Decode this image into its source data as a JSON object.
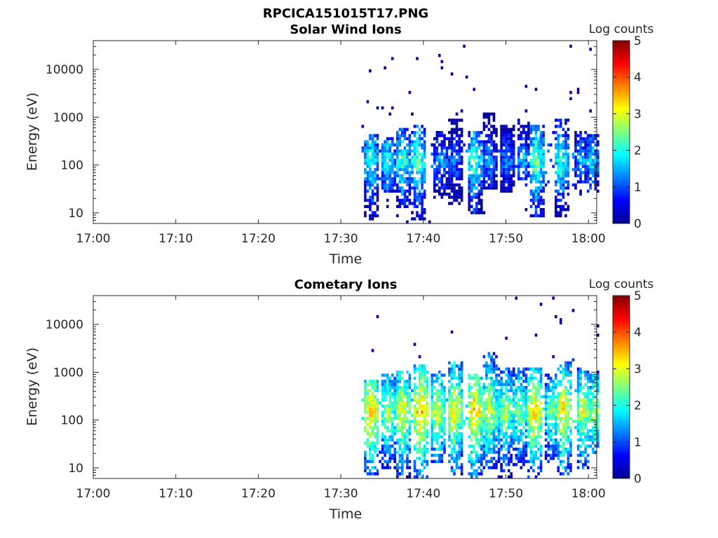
{
  "figure_title": "RPCICA151015T17.PNG",
  "colorbar": {
    "label": "Log counts",
    "ticks": [
      "0",
      "1",
      "2",
      "3",
      "4",
      "5"
    ],
    "range": [
      0,
      5
    ],
    "colormap": "jet"
  },
  "chart_data": [
    {
      "type": "heatmap",
      "title": "Solar Wind Ions",
      "xlabel": "Time",
      "ylabel": "Energy (eV)",
      "x_ticks": [
        "17:00",
        "17:10",
        "17:20",
        "17:30",
        "17:40",
        "17:50",
        "18:00"
      ],
      "x_range_minutes": [
        0,
        61
      ],
      "y_ticks": [
        "10",
        "100",
        "1000",
        "10000"
      ],
      "y_scale": "log",
      "y_range": [
        6,
        40000
      ],
      "colorbar_range": [
        0,
        5
      ],
      "data_start_minute": 32.5,
      "data_end_minute": 61,
      "typical_log_counts": 1.3,
      "energy_band_center_eV": 120,
      "bursts": [
        {
          "minute": 33.5,
          "e_low": 7,
          "e_high": 420,
          "peak": 2.2
        },
        {
          "minute": 35.5,
          "e_low": 25,
          "e_high": 350,
          "peak": 2.0
        },
        {
          "minute": 37.3,
          "e_low": 12,
          "e_high": 600,
          "peak": 2.2
        },
        {
          "minute": 39.2,
          "e_low": 7,
          "e_high": 700,
          "peak": 2.4
        },
        {
          "minute": 42.0,
          "e_low": 20,
          "e_high": 500,
          "peak": 1.6
        },
        {
          "minute": 43.6,
          "e_low": 15,
          "e_high": 900,
          "peak": 1.4
        },
        {
          "minute": 46.0,
          "e_low": 10,
          "e_high": 500,
          "peak": 2.3
        },
        {
          "minute": 47.8,
          "e_low": 30,
          "e_high": 1200,
          "peak": 1.5
        },
        {
          "minute": 50.0,
          "e_low": 25,
          "e_high": 700,
          "peak": 1.5
        },
        {
          "minute": 52.0,
          "e_low": 45,
          "e_high": 900,
          "peak": 1.6
        },
        {
          "minute": 53.5,
          "e_low": 8,
          "e_high": 700,
          "peak": 2.5
        },
        {
          "minute": 56.5,
          "e_low": 8,
          "e_high": 900,
          "peak": 2.2
        },
        {
          "minute": 59.0,
          "e_low": 40,
          "e_high": 500,
          "peak": 1.6
        },
        {
          "minute": 60.3,
          "e_low": 25,
          "e_high": 450,
          "peak": 1.8
        }
      ]
    },
    {
      "type": "heatmap",
      "title": "Cometary Ions",
      "xlabel": "Time",
      "ylabel": "Energy (eV)",
      "x_ticks": [
        "17:00",
        "17:10",
        "17:20",
        "17:30",
        "17:40",
        "17:50",
        "18:00"
      ],
      "x_range_minutes": [
        0,
        61
      ],
      "y_ticks": [
        "10",
        "100",
        "1000",
        "10000"
      ],
      "y_scale": "log",
      "y_range": [
        6,
        40000
      ],
      "colorbar_range": [
        0,
        5
      ],
      "data_start_minute": 32.5,
      "data_end_minute": 61,
      "typical_log_counts": 2.2,
      "energy_band_center_eV": 150,
      "bursts": [
        {
          "minute": 33.5,
          "e_low": 7,
          "e_high": 700,
          "peak": 3.4
        },
        {
          "minute": 35.5,
          "e_low": 10,
          "e_high": 900,
          "peak": 2.8
        },
        {
          "minute": 37.3,
          "e_low": 6,
          "e_high": 1100,
          "peak": 3.2
        },
        {
          "minute": 39.6,
          "e_low": 6,
          "e_high": 1500,
          "peak": 3.6
        },
        {
          "minute": 41.6,
          "e_low": 12,
          "e_high": 1000,
          "peak": 3.0
        },
        {
          "minute": 43.6,
          "e_low": 7,
          "e_high": 1800,
          "peak": 3.2
        },
        {
          "minute": 46.0,
          "e_low": 6,
          "e_high": 900,
          "peak": 3.5
        },
        {
          "minute": 47.8,
          "e_low": 10,
          "e_high": 2800,
          "peak": 3.0
        },
        {
          "minute": 49.8,
          "e_low": 6,
          "e_high": 1200,
          "peak": 2.8
        },
        {
          "minute": 51.5,
          "e_low": 10,
          "e_high": 1500,
          "peak": 2.7
        },
        {
          "minute": 53.3,
          "e_low": 6,
          "e_high": 1200,
          "peak": 3.4
        },
        {
          "minute": 55.5,
          "e_low": 12,
          "e_high": 1000,
          "peak": 2.6
        },
        {
          "minute": 56.8,
          "e_low": 7,
          "e_high": 1600,
          "peak": 3.3
        },
        {
          "minute": 59.2,
          "e_low": 10,
          "e_high": 1200,
          "peak": 3.0
        },
        {
          "minute": 60.6,
          "e_low": 20,
          "e_high": 900,
          "peak": 2.8
        }
      ]
    }
  ]
}
